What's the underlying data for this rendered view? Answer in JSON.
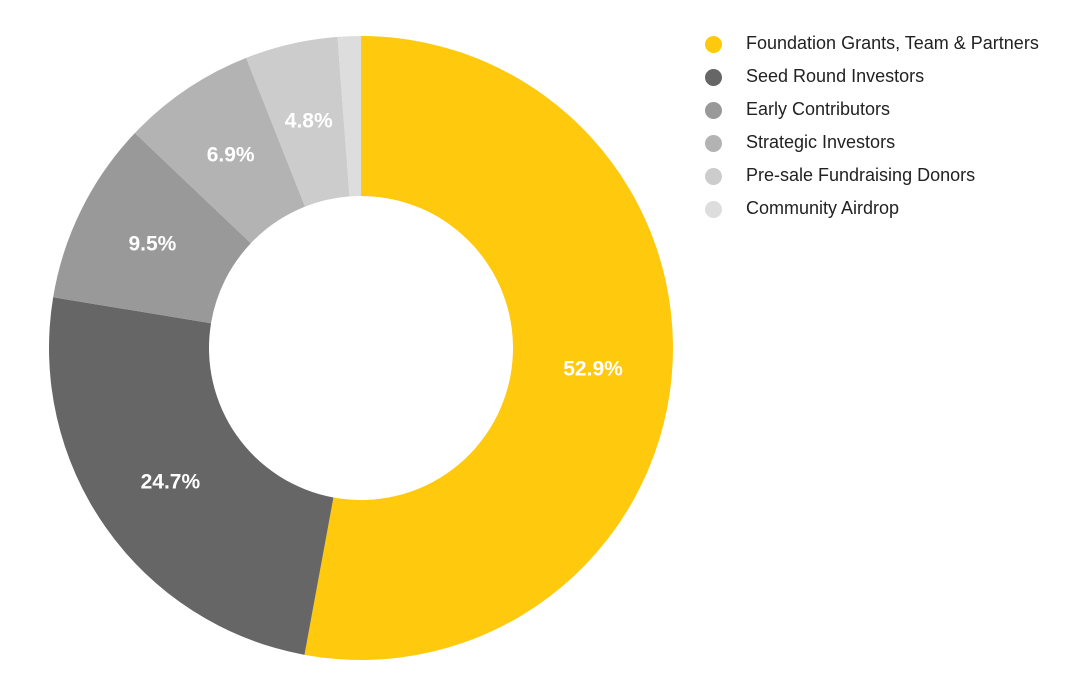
{
  "chart_data": {
    "type": "pie",
    "subtype": "donut",
    "labels": [
      "Foundation Grants, Team & Partners",
      "Seed Round Investors",
      "Early Contributors",
      "Strategic Investors",
      "Pre-sale Fundraising Donors",
      "Community Airdrop"
    ],
    "values": [
      52.9,
      24.7,
      9.5,
      6.9,
      4.8,
      1.2
    ],
    "value_labels": [
      "52.9%",
      "24.7%",
      "9.5%",
      "6.9%",
      "4.8%",
      ""
    ],
    "colors": [
      "#FFC90E",
      "#666666",
      "#999999",
      "#B3B3B3",
      "#CCCCCC",
      "#DDDDDD"
    ],
    "legend_position": "right",
    "start_angle": "top",
    "direction": "clockwise"
  }
}
